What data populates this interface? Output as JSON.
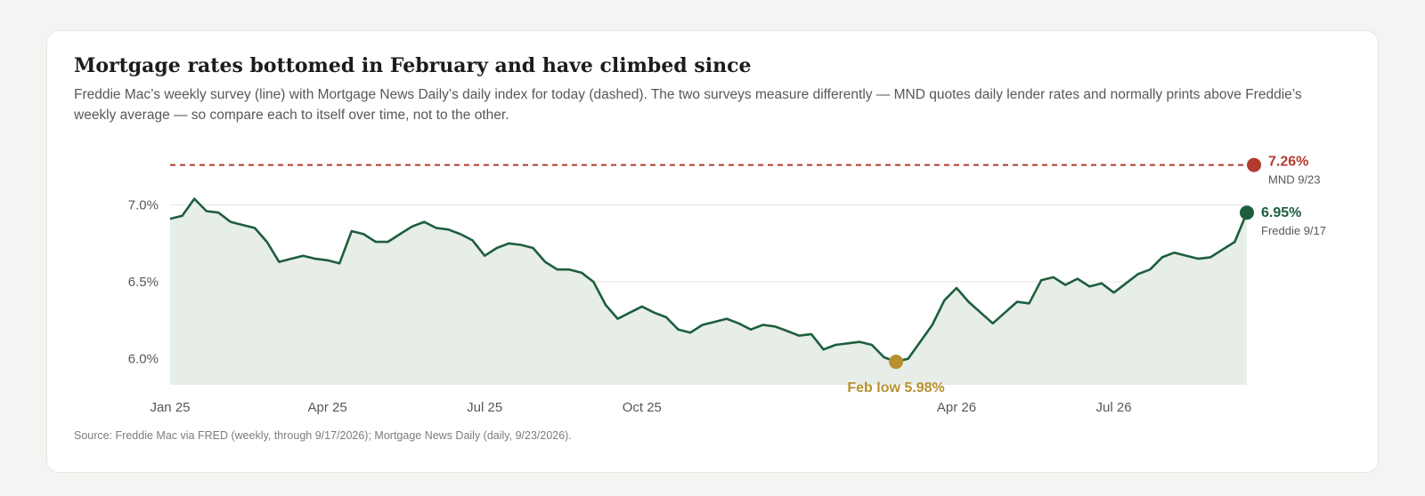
{
  "header": {
    "title": "Mortgage rates bottomed in February and have climbed since",
    "subtitle": "Freddie Mac’s weekly survey (line) with Mortgage News Daily’s daily index for today (dashed). The two surveys measure differently — MND quotes daily lender rates and normally prints above Freddie’s weekly average — so compare each to itself over time, not to the other."
  },
  "source": "Source: Freddie Mac via FRED (weekly, through 9/17/2026); Mortgage News Daily (daily, 9/23/2026).",
  "colors": {
    "freddie_line": "#1d5e3e",
    "freddie_fill": "#e6eee7",
    "mnd": "#b23a2e",
    "low": "#b8902e",
    "grid": "#e4e7e3",
    "axis_text": "#555a55"
  },
  "chart_data": {
    "type": "line",
    "series": [
      {
        "name": "Freddie",
        "values": [
          6.91,
          6.93,
          7.04,
          6.96,
          6.95,
          6.89,
          6.87,
          6.85,
          6.76,
          6.63,
          6.65,
          6.67,
          6.65,
          6.64,
          6.62,
          6.83,
          6.81,
          6.76,
          6.76,
          6.81,
          6.86,
          6.89,
          6.85,
          6.84,
          6.81,
          6.77,
          6.67,
          6.72,
          6.75,
          6.74,
          6.72,
          6.63,
          6.58,
          6.58,
          6.56,
          6.5,
          6.35,
          6.26,
          6.3,
          6.34,
          6.3,
          6.27,
          6.19,
          6.17,
          6.22,
          6.24,
          6.26,
          6.23,
          6.19,
          6.22,
          6.21,
          6.18,
          6.15,
          6.16,
          6.06,
          6.09,
          6.1,
          6.11,
          6.09,
          6.01,
          5.98,
          6.0,
          6.11,
          6.22,
          6.38,
          6.46,
          6.37,
          6.3,
          6.23,
          6.3,
          6.37,
          6.36,
          6.51,
          6.53,
          6.48,
          6.52,
          6.47,
          6.49,
          6.43,
          6.49,
          6.55,
          6.58,
          6.66,
          6.69,
          6.67,
          6.65,
          6.66,
          6.71,
          6.76,
          6.95
        ]
      }
    ],
    "mnd_value": 7.26,
    "yticks": [
      6.0,
      6.5,
      7.0
    ],
    "ytick_labels": [
      "6.0%",
      "6.5%",
      "7.0%"
    ],
    "xtick_labels": [
      "Jan 25",
      "Apr 25",
      "Jul 25",
      "Oct 25",
      "Apr 26",
      "Jul 26"
    ],
    "xtick_index": [
      0,
      13,
      26,
      39,
      65,
      78
    ],
    "ylim": [
      5.83,
      7.35
    ],
    "low_index": 60,
    "annotations": {
      "low_label": "Feb low 5.98%",
      "freddie_value": "6.95%",
      "freddie_date": "Freddie 9/17",
      "mnd_value": "7.26%",
      "mnd_date": "MND 9/23"
    }
  }
}
